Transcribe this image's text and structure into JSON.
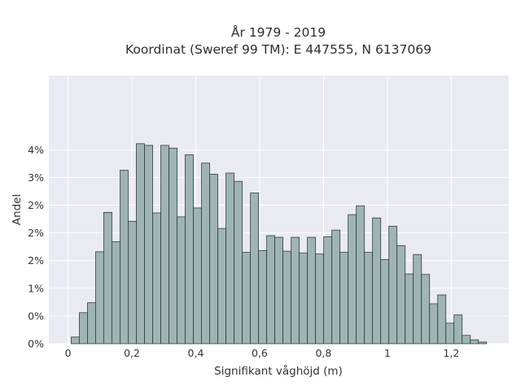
{
  "chart_data": {
    "type": "bar",
    "title": "År 1979 - 2019",
    "subtitle": "Koordinat (Sweref 99 TM): E 447555, N 6137069",
    "xlabel": "Signifikant våghöjd (m)",
    "ylabel": "Andel",
    "xlim": [
      -0.06,
      1.38
    ],
    "ylim": [
      0,
      0.0484
    ],
    "bin_start": 0.01,
    "bin_width": 0.0255,
    "values": [
      0.0012,
      0.0056,
      0.0074,
      0.0166,
      0.0237,
      0.0184,
      0.0313,
      0.0221,
      0.0361,
      0.0358,
      0.0236,
      0.0358,
      0.0353,
      0.0229,
      0.0341,
      0.0245,
      0.0326,
      0.0306,
      0.0208,
      0.0308,
      0.0293,
      0.0165,
      0.0272,
      0.0168,
      0.0195,
      0.0192,
      0.0167,
      0.0192,
      0.0164,
      0.0192,
      0.0162,
      0.0193,
      0.0205,
      0.0165,
      0.0233,
      0.0249,
      0.0165,
      0.0227,
      0.0152,
      0.0212,
      0.0177,
      0.0126,
      0.0161,
      0.0125,
      0.0072,
      0.0088,
      0.0037,
      0.0052,
      0.0015,
      0.0007,
      0.0003
    ],
    "x_ticks": [
      {
        "value": 0,
        "label": "0"
      },
      {
        "value": 0.2,
        "label": "0,2"
      },
      {
        "value": 0.4,
        "label": "0,4"
      },
      {
        "value": 0.6,
        "label": "0,6"
      },
      {
        "value": 0.8,
        "label": "0,8"
      },
      {
        "value": 1.0,
        "label": "1"
      },
      {
        "value": 1.2,
        "label": "1,2"
      }
    ],
    "y_ticks": [
      {
        "value": 0.0,
        "label": "0%"
      },
      {
        "value": 0.005,
        "label": "0%"
      },
      {
        "value": 0.01,
        "label": "1%"
      },
      {
        "value": 0.015,
        "label": "2%"
      },
      {
        "value": 0.02,
        "label": "2%"
      },
      {
        "value": 0.025,
        "label": "2%"
      },
      {
        "value": 0.03,
        "label": "3%"
      },
      {
        "value": 0.035,
        "label": "4%"
      }
    ],
    "grid": true,
    "colors": {
      "bar_fill": "#9fb5b3",
      "bar_stroke": "#2f3f3d",
      "plot_background": "#eaeaf2",
      "grid": "#ffffff"
    }
  }
}
